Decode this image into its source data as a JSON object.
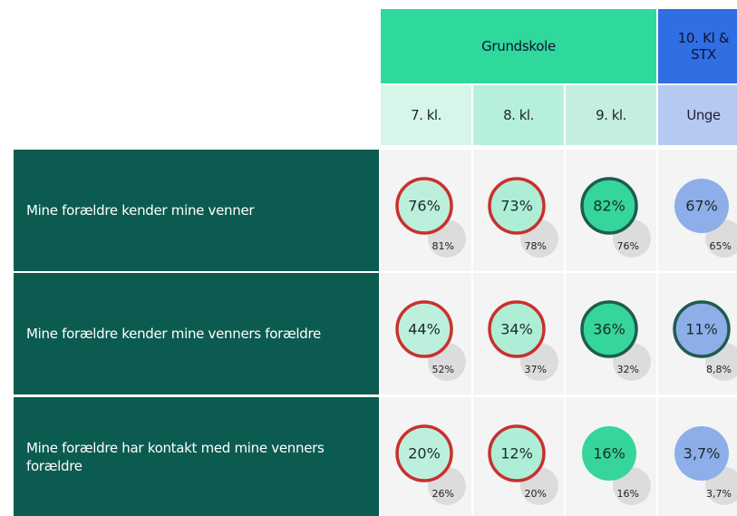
{
  "header": {
    "groups": [
      {
        "label": "Grundskole",
        "color": "#2fd99b",
        "span": 3
      },
      {
        "label": "10. Kl & STX",
        "color": "#2f6fe3",
        "span": 1
      }
    ],
    "columns": [
      {
        "label": "7. kl.",
        "bg": "#d6f6ea",
        "circle": "#bdf0dc"
      },
      {
        "label": "8. kl.",
        "bg": "#b6f0dc",
        "circle": "#aeeed6"
      },
      {
        "label": "9. kl.",
        "bg": "#c4eedf",
        "circle": "#36d59b"
      },
      {
        "label": "Unge",
        "bg": "#b5c9f2",
        "circle": "#8eaee9"
      }
    ]
  },
  "rows": [
    {
      "label": "Mine forældre kender mine venner",
      "cells": [
        {
          "value": "76%",
          "compare": "81%",
          "ring": "#c9302f"
        },
        {
          "value": "73%",
          "compare": "78%",
          "ring": "#c9302f"
        },
        {
          "value": "82%",
          "compare": "76%",
          "ring": "#1d5c50"
        },
        {
          "value": "67%",
          "compare": "65%"
        }
      ]
    },
    {
      "label": "Mine forældre kender mine venners forældre",
      "cells": [
        {
          "value": "44%",
          "compare": "52%",
          "ring": "#c9302f"
        },
        {
          "value": "34%",
          "compare": "37%",
          "ring": "#c9302f"
        },
        {
          "value": "36%",
          "compare": "32%",
          "ring": "#1d5c50"
        },
        {
          "value": "11%",
          "compare": "8,8%",
          "ring": "#1d5c50"
        }
      ]
    },
    {
      "label": "Mine forældre har kontakt med mine venners forældre",
      "cells": [
        {
          "value": "20%",
          "compare": "26%",
          "ring": "#c9302f"
        },
        {
          "value": "12%",
          "compare": "20%",
          "ring": "#c9302f"
        },
        {
          "value": "16%",
          "compare": "16%"
        },
        {
          "value": "3,7%",
          "compare": "3,7%"
        }
      ]
    }
  ]
}
